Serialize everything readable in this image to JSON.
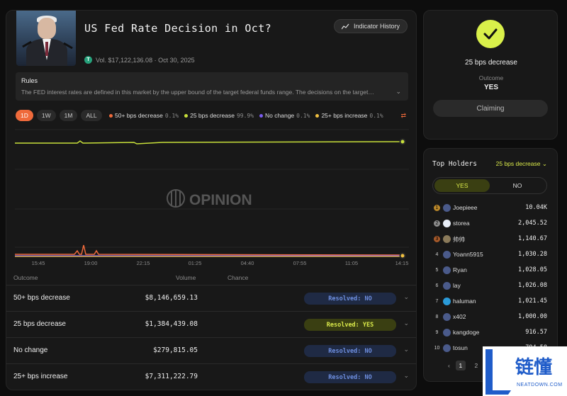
{
  "market": {
    "title": "US Fed Rate Decision in Oct?",
    "indicator_history": "Indicator History",
    "meta": "Vol. $17,122,136.08 · Oct 30, 2025",
    "tether_symbol": "T",
    "rules_heading": "Rules",
    "rules_text": "The FED interest rates are defined in this market by the upper bound of the target federal funds range. The decisions on the target…",
    "range_tabs": [
      "1D",
      "1W",
      "1M",
      "ALL"
    ],
    "legend": [
      {
        "label": "50+ bps decrease",
        "pct": "0.1%",
        "color": "#ef6a3b"
      },
      {
        "label": "25 bps decrease",
        "pct": "99.9%",
        "color": "#c8e03a"
      },
      {
        "label": "No change",
        "pct": "0.1%",
        "color": "#7a5cf0"
      },
      {
        "label": "25+ bps increase",
        "pct": "0.1%",
        "color": "#f0c040"
      }
    ],
    "watermark": "OPINION",
    "x_ticks": [
      "15:45",
      "19:00",
      "22:15",
      "01:25",
      "04:40",
      "07:55",
      "11:05",
      "14:15"
    ],
    "table_headers": {
      "outcome": "Outcome",
      "volume": "Volume",
      "chance": "Chance"
    },
    "outcomes": [
      {
        "name": "50+ bps decrease",
        "volume": "$8,146,659.13",
        "status": "Resolved: NO",
        "yes": false
      },
      {
        "name": "25 bps decrease",
        "volume": "$1,384,439.08",
        "status": "Resolved: YES",
        "yes": true
      },
      {
        "name": "No change",
        "volume": "$279,815.05",
        "status": "Resolved: NO",
        "yes": false
      },
      {
        "name": "25+ bps increase",
        "volume": "$7,311,222.79",
        "status": "Resolved: NO",
        "yes": false
      }
    ]
  },
  "resolved": {
    "outcome_name": "25 bps decrease",
    "outcome_label": "Outcome",
    "outcome_value": "YES",
    "claim_label": "Claiming"
  },
  "holders": {
    "title": "Top Holders",
    "selected": "25 bps decrease",
    "yes_label": "YES",
    "no_label": "NO",
    "list": [
      {
        "rank": "1",
        "name": "Joepieee",
        "amount": "10.04K"
      },
      {
        "rank": "2",
        "name": "storea",
        "amount": "2,045.52"
      },
      {
        "rank": "3",
        "name": "帅帅",
        "amount": "1,140.67"
      },
      {
        "rank": "4",
        "name": "Yoann5915",
        "amount": "1,030.28"
      },
      {
        "rank": "5",
        "name": "Ryan",
        "amount": "1,028.05"
      },
      {
        "rank": "6",
        "name": "lay",
        "amount": "1,026.08"
      },
      {
        "rank": "7",
        "name": "haluman",
        "amount": "1,021.45"
      },
      {
        "rank": "8",
        "name": "x402",
        "amount": "1,000.00"
      },
      {
        "rank": "9",
        "name": "kangdoge",
        "amount": "916.57"
      },
      {
        "rank": "10",
        "name": "tosun",
        "amount": "794.58"
      }
    ],
    "pages": [
      "1",
      "2"
    ]
  },
  "watermark_logo": {
    "cn": "链懂",
    "en": "NEATDOWN.COM"
  }
}
